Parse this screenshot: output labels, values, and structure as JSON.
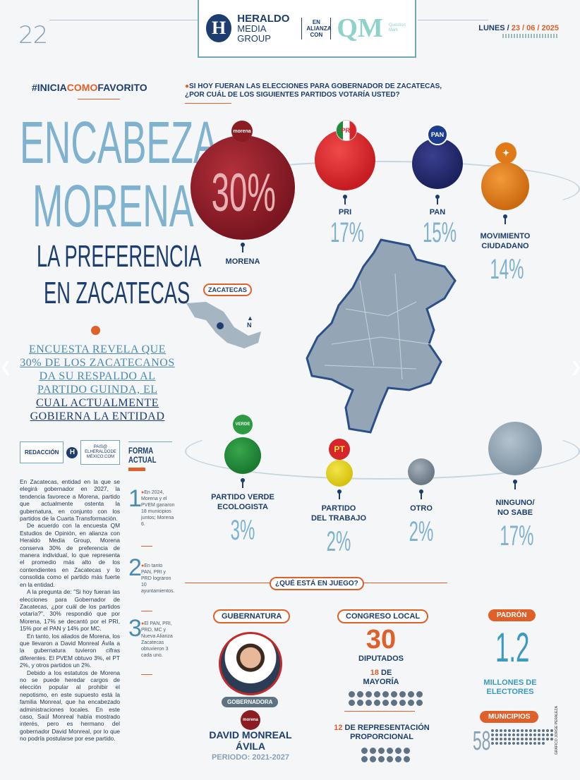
{
  "page": {
    "number": "22",
    "date_day": "LUNES",
    "date": "23 / 06 / 2025"
  },
  "header": {
    "logo_letter": "H",
    "brand_line1": "HERALDO",
    "brand_line2": "MEDIA GROUP",
    "alliance": "EN ALIANZA CON",
    "partner_logo": "QM",
    "partner_sub": "Question Mark"
  },
  "hashtag": {
    "part1": "#INICIA",
    "part2": "COMO",
    "part3": "FAVORITO"
  },
  "headline": {
    "line1": "ENCABEZA",
    "line2": "MORENA",
    "line3": "LA PREFERENCIA",
    "line4": "EN ZACATECAS"
  },
  "lead": {
    "part1": "ENCUESTA REVELA QUE 30% DE LOS ZACATECANOS DA SU RESPALDO AL PARTIDO GUINDA, EL",
    "part2": "CUAL ACTUALMENTE GOBIERNA LA ENTIDAD"
  },
  "byline": {
    "author": "REDACCIÓN",
    "logo": "H",
    "contact": "PAIS@ ELHERALDODE MEXICO.COM"
  },
  "body": [
    "En Zacatecas, entidad en la que se elegirá gobernador en 2027, la tendencia favorece a Morena, partido que actualmente ostenta la gubernatura, en conjunto con los partidos de la Cuarta Transformación.",
    "De acuerdo con la encuesta QM Estudios de Opinión, en alianza con Heraldo Media Group, Morena conserva 30% de preferencia de manera individual, lo que representa el promedio más alto de los contendientes en Zacatecas y lo consolida como el partido más fuerte en la entidad.",
    "A la pregunta de: \"Si hoy fueran las elecciones para Gobernador de Zacatecas, ¿por cuál de los partidos votaría?\", 30% respondió que por Morena, 17% se decantó por el PRI, 15% por el PAN y 14% por MC.",
    "En tanto, los aliados de Morena, los que llevaron a David Monreal Ávila a la gubernatura tuvieron cifras diferentes. El PVEM obtuvo 3%, el PT 2%, y otros partidos un 2%.",
    "Debido a los estatutos de Morena no se puede heredar cargos de elección popular al prohibir el nepotismo, en este supuesto está la familia Monreal, que ha encabezado administraciones locales. En este caso, Saúl Monreal había mostrado interés, pero es hermano del gobernador David Monreal, por lo que no podría postularse por ese partido."
  ],
  "forma": {
    "title1": "FORMA",
    "title2": "ACTUAL",
    "items": [
      {
        "num": "1",
        "text": "En 2024, Morena y el PVEM ganaron 18 municipios juntos; Morena 6."
      },
      {
        "num": "2",
        "text": "En tanto PAN, PRI y PRD lograron 10 ayuntamientos."
      },
      {
        "num": "3",
        "text": "El PAN, PRI, PRD, MC y Nueva Alianza Zacatecas obtuvieron 3 cada uno."
      }
    ]
  },
  "question": {
    "line1": "SI HOY FUERAN LAS ELECCIONES PARA GOBERNADOR DE ZACATECAS,",
    "line2": "¿POR CUÁL DE LOS SIGUIENTES PARTIDOS VOTARÍA USTED?"
  },
  "chart_data": {
    "type": "bubble",
    "title": "SI HOY FUERAN LAS ELECCIONES PARA GOBERNADOR DE ZACATECAS, ¿POR CUÁL DE LOS SIGUIENTES PARTIDOS VOTARÍA USTED?",
    "categories": [
      "MORENA",
      "PRI",
      "PAN",
      "MOVIMIENTO CIUDADANO",
      "PARTIDO VERDE ECOLOGISTA",
      "PARTIDO DEL TRABAJO",
      "OTRO",
      "NINGUNO/ NO SABE"
    ],
    "values": [
      30,
      17,
      15,
      14,
      3,
      2,
      2,
      17
    ],
    "labels": [
      "30%",
      "17%",
      "15%",
      "14%",
      "3%",
      "2%",
      "2%",
      "17%"
    ],
    "colors": [
      "#8a1c22",
      "#d6262b",
      "#232a6e",
      "#e07a18",
      "#1e8a3a",
      "#e3d21f",
      "#7b8a96",
      "#8fa3b3"
    ]
  },
  "parties": {
    "morena": {
      "name": "MORENA",
      "pct": "30%",
      "logo": "morena"
    },
    "pri": {
      "name": "PRI",
      "pct": "17%",
      "logo": "PRI"
    },
    "pan": {
      "name": "PAN",
      "pct": "15%",
      "logo": "PAN"
    },
    "mc": {
      "name1": "MOVIMIENTO",
      "name2": "CIUDADANO",
      "pct": "14%"
    },
    "pvem": {
      "name1": "PARTIDO VERDE",
      "name2": "ECOLOGISTA",
      "pct": "3%",
      "logo": "VERDE"
    },
    "pt": {
      "name1": "PARTIDO",
      "name2": "DEL TRABAJO",
      "pct": "2%",
      "logo": "PT"
    },
    "otro": {
      "name": "OTRO",
      "pct": "2%"
    },
    "ninguno": {
      "name1": "NINGUNO/",
      "name2": "NO SABE",
      "pct": "17%"
    }
  },
  "map": {
    "label": "ZACATECAS",
    "north": "N"
  },
  "stakes": {
    "title": "¿QUÉ ESTÁ EN JUEGO?",
    "gubernatura": {
      "label": "GUBERNATURA",
      "badge": "GOBERNADORA",
      "party": "morena",
      "name1": "DAVID MONREAL",
      "name2": "ÁVILA",
      "period": "PERIODO: 2021-2027"
    },
    "congreso": {
      "label": "CONGRESO LOCAL",
      "total": "30",
      "total_label": "DIPUTADOS",
      "mayoria_num": "18",
      "mayoria_de": "DE",
      "mayoria_label": "MAYORÍA",
      "rep_num": "12",
      "rep_label1": "DE REPRESENTACIÓN",
      "rep_label2": "PROPORCIONAL"
    },
    "padron": {
      "label": "PADRÓN",
      "value": "1.2",
      "unit1": "MILLONES DE",
      "unit2": "ELECTORES",
      "mun_label": "MUNICIPIOS",
      "mun_value": "58"
    }
  },
  "credit": "GRÁFICO JORGE PERALEZA"
}
